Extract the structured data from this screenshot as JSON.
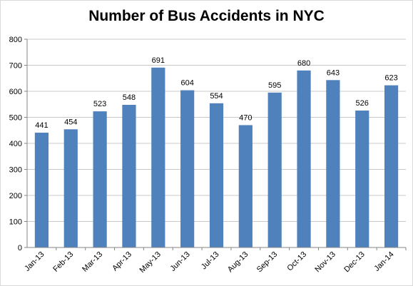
{
  "chart_data": {
    "type": "bar",
    "title": "Number of Bus Accidents in NYC",
    "xlabel": "",
    "ylabel": "",
    "categories": [
      "Jan-13",
      "Feb-13",
      "Mar-13",
      "Apr-13",
      "May-13",
      "Jun-13",
      "Jul-13",
      "Aug-13",
      "Sep-13",
      "Oct-13",
      "Nov-13",
      "Dec-13",
      "Jan-14"
    ],
    "values": [
      441,
      454,
      523,
      548,
      691,
      604,
      554,
      470,
      595,
      680,
      643,
      526,
      623
    ],
    "ylim": [
      0,
      800
    ],
    "yticks": [
      0,
      100,
      200,
      300,
      400,
      500,
      600,
      700,
      800
    ],
    "grid": true,
    "legend": "none",
    "bar_color": "#4f81bd",
    "grid_color": "#c8c8c8",
    "data_labels": true
  }
}
